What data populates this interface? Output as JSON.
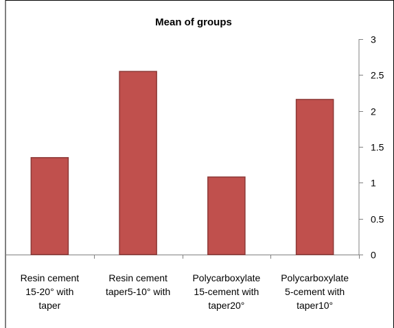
{
  "chart_data": {
    "type": "bar",
    "title": "Mean of groups",
    "xlabel": "",
    "ylabel": "",
    "categories": [
      [
        "Resin cement",
        "15-20° with",
        "taper"
      ],
      [
        "Resin cement",
        "taper5-10° with"
      ],
      [
        "Polycarboxylate",
        "15-cement with",
        "taper20°"
      ],
      [
        "Polycarboxylate",
        "5-cement with",
        "taper10°"
      ]
    ],
    "values": [
      1.35,
      2.55,
      1.08,
      2.16
    ],
    "ylim": [
      0,
      3
    ],
    "yticks": [
      "0",
      "0.5",
      "1",
      "1.5",
      "2",
      "2.5",
      "3"
    ],
    "ytick_values": [
      0,
      0.5,
      1,
      1.5,
      2,
      2.5,
      3
    ],
    "y_axis_side": "right",
    "grid": false,
    "legend": "none",
    "bar_color": "#c0504d",
    "bar_edge_color": "#8c3836"
  }
}
